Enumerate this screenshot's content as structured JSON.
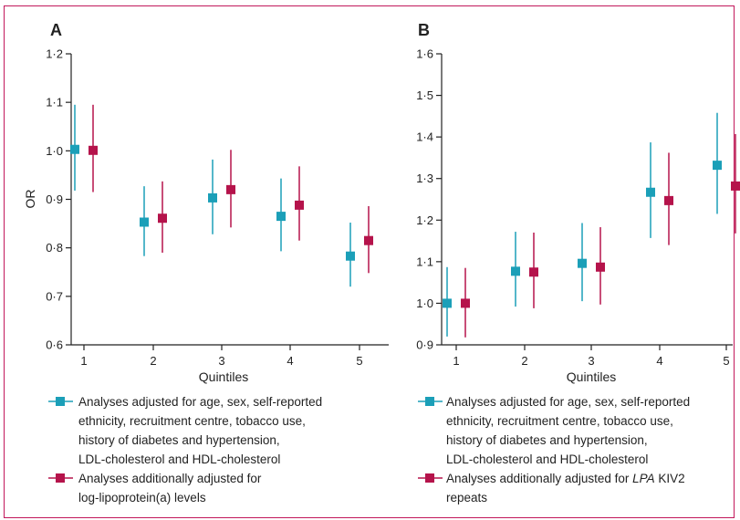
{
  "colors": {
    "series1": "#1b9fb8",
    "series2": "#b5134b",
    "frame": "#c2185b",
    "axis": "#222222"
  },
  "chart_data": [
    {
      "type": "scatter",
      "panel": "A",
      "title": "",
      "xlabel": "Quintiles",
      "ylabel": "OR",
      "ylim": [
        0.6,
        1.2
      ],
      "yticks": [
        0.6,
        0.7,
        0.8,
        0.9,
        1.0,
        1.1,
        1.2
      ],
      "ytick_labels": [
        "0·6",
        "0·7",
        "0·8",
        "0·9",
        "1·0",
        "1·1",
        "1·2"
      ],
      "categories": [
        "1",
        "2",
        "3",
        "4",
        "5"
      ],
      "grid": false,
      "series": [
        {
          "name": "Analyses adjusted for age, sex, self-reported ethnicity, recruitment centre, tobacco use, history of diabetes and hypertension, LDL-cholesterol and HDL-cholesterol",
          "values": [
            1.003,
            0.853,
            0.903,
            0.865,
            0.783
          ],
          "lower": [
            0.918,
            0.783,
            0.828,
            0.793,
            0.72
          ],
          "upper": [
            1.095,
            0.927,
            0.982,
            0.943,
            0.852
          ]
        },
        {
          "name": "Analyses additionally adjusted for log-lipoprotein(a) levels",
          "values": [
            1.001,
            0.861,
            0.92,
            0.888,
            0.815
          ],
          "lower": [
            0.915,
            0.79,
            0.842,
            0.815,
            0.748
          ],
          "upper": [
            1.095,
            0.937,
            1.002,
            0.968,
            0.886
          ]
        }
      ]
    },
    {
      "type": "scatter",
      "panel": "B",
      "title": "",
      "xlabel": "Quintiles",
      "ylabel": "",
      "ylim": [
        0.9,
        1.6
      ],
      "yticks": [
        0.9,
        1.0,
        1.1,
        1.2,
        1.3,
        1.4,
        1.5,
        1.6
      ],
      "ytick_labels": [
        "0·9",
        "1·0",
        "1·1",
        "1·2",
        "1·3",
        "1·4",
        "1·5",
        "1·6"
      ],
      "categories": [
        "1",
        "2",
        "3",
        "4",
        "5"
      ],
      "grid": false,
      "series": [
        {
          "name": "Analyses adjusted for age, sex, self-reported ethnicity, recruitment centre, tobacco use, history of diabetes and hypertension, LDL-cholesterol and HDL-cholesterol",
          "values": [
            1.0,
            1.077,
            1.096,
            1.267,
            1.332
          ],
          "lower": [
            0.92,
            0.992,
            1.005,
            1.157,
            1.215
          ],
          "upper": [
            1.087,
            1.172,
            1.193,
            1.387,
            1.458
          ]
        },
        {
          "name": "Analyses additionally adjusted for LPA KIV2 repeats",
          "values": [
            1.0,
            1.075,
            1.087,
            1.247,
            1.282
          ],
          "lower": [
            0.918,
            0.988,
            0.997,
            1.14,
            1.168
          ],
          "upper": [
            1.085,
            1.17,
            1.183,
            1.362,
            1.407
          ]
        }
      ]
    }
  ],
  "legend_A": {
    "item1_lines": [
      "Analyses adjusted for age, sex, self-reported",
      "ethnicity, recruitment centre, tobacco use,",
      "history of diabetes and hypertension,",
      "LDL-cholesterol and HDL-cholesterol"
    ],
    "item2_lines": [
      "Analyses additionally adjusted for",
      "log-lipoprotein(a) levels"
    ]
  },
  "legend_B": {
    "item1_lines": [
      "Analyses adjusted for age, sex, self-reported",
      "ethnicity, recruitment centre, tobacco use,",
      "history of diabetes and hypertension,",
      "LDL-cholesterol and HDL-cholesterol"
    ],
    "item2_line1_pre": "Analyses additionally adjusted for ",
    "item2_line1_italic": "LPA",
    "item2_line1_post": " KIV2",
    "item2_line2": "repeats"
  }
}
